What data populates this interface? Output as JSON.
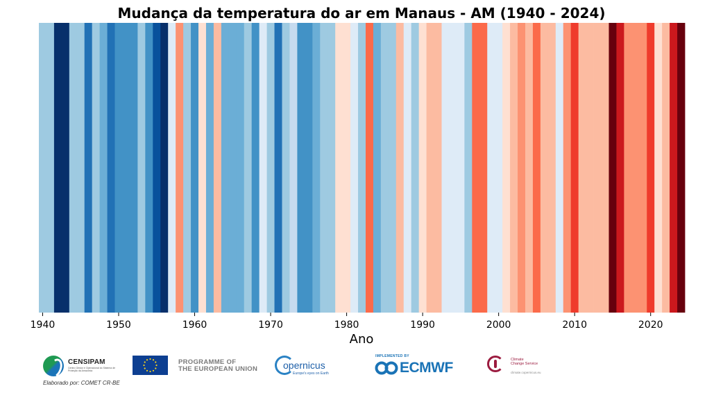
{
  "chart_data": {
    "type": "bar",
    "title": "Mudança da temperatura do ar em Manaus - AM (1940 - 2024)",
    "xlabel": "Ano",
    "ylabel": "",
    "x_ticks": [
      "1940",
      "1950",
      "1960",
      "1970",
      "1980",
      "1990",
      "2000",
      "2010",
      "2020"
    ],
    "x_tick_values": [
      1940,
      1950,
      1960,
      1970,
      1980,
      1990,
      2000,
      2010,
      2020
    ],
    "xlim": [
      1939.5,
      2024.5
    ],
    "legend": false,
    "grid": false,
    "color_scale": {
      "min": -3,
      "max": 3,
      "stops": [
        "#67000d",
        "#a50f15",
        "#cb181d",
        "#ef3b2c",
        "#fb6a4a",
        "#fc9272",
        "#fcbba1",
        "#fee0d2",
        "#fff5f0",
        "#deebf7",
        "#c6dbef",
        "#9ecae1",
        "#6baed6",
        "#4292c6",
        "#2171b5",
        "#08519c",
        "#08306b"
      ]
    },
    "years": [
      1940,
      1941,
      1942,
      1943,
      1944,
      1945,
      1946,
      1947,
      1948,
      1949,
      1950,
      1951,
      1952,
      1953,
      1954,
      1955,
      1956,
      1957,
      1958,
      1959,
      1960,
      1961,
      1962,
      1963,
      1964,
      1965,
      1966,
      1967,
      1968,
      1969,
      1970,
      1971,
      1972,
      1973,
      1974,
      1975,
      1976,
      1977,
      1978,
      1979,
      1980,
      1981,
      1982,
      1983,
      1984,
      1985,
      1986,
      1987,
      1988,
      1989,
      1990,
      1991,
      1992,
      1993,
      1994,
      1995,
      1996,
      1997,
      1998,
      1999,
      2000,
      2001,
      2002,
      2003,
      2004,
      2005,
      2006,
      2007,
      2008,
      2009,
      2010,
      2011,
      2012,
      2013,
      2014,
      2015,
      2016,
      2017,
      2018,
      2019,
      2020,
      2021,
      2022,
      2023,
      2024
    ],
    "values": [
      -1.2,
      -1.2,
      -3,
      -3,
      -1.2,
      -1.2,
      -2.2,
      -1.2,
      -1.5,
      -2.2,
      -1.9,
      -1.9,
      -1.9,
      -1.2,
      -1.9,
      -2.6,
      -3,
      -0.2,
      1.1,
      -1.2,
      -1.9,
      0.5,
      -1.5,
      0.8,
      -1.5,
      -1.5,
      -1.5,
      -1.2,
      -1.9,
      -0.3,
      -1.2,
      -2.2,
      -1.2,
      -0.7,
      -1.9,
      -1.9,
      -1.5,
      -1.2,
      -1.2,
      0.3,
      0.3,
      -0.5,
      -1.2,
      1.5,
      -1.5,
      -1.2,
      -1.2,
      0.8,
      -0.3,
      -1.2,
      0.2,
      0.8,
      0.8,
      -0.2,
      -0.2,
      -0.2,
      -1.2,
      1.5,
      1.5,
      -0.5,
      -0.5,
      0.2,
      0.8,
      1.1,
      0.8,
      1.5,
      0.8,
      0.8,
      -0.5,
      1.1,
      2.0,
      0.8,
      0.8,
      0.8,
      0.8,
      3.0,
      2.4,
      1.1,
      1.1,
      1.1,
      2.0,
      0.2,
      0.8,
      2.4,
      3.0
    ]
  },
  "logos": {
    "censipam_name": "CENSIPAM",
    "censipam_sub": "Centro Gestor e Operacional do Sistema de Proteção da Amazônia",
    "eu_text_line1": "PROGRAMME OF",
    "eu_text_line2": "THE EUROPEAN UNION",
    "copernicus_name": "opernicus",
    "copernicus_tagline": "Europe's eyes on Earth",
    "ecmwf_implemented": "IMPLEMENTED BY",
    "ecmwf_name": "ECMWF",
    "c3s_name_line1": "Climate",
    "c3s_name_line2": "Change Service",
    "c3s_url": "climate.copernicus.eu"
  },
  "credit": "Elaborado por: COMET CR-BE"
}
